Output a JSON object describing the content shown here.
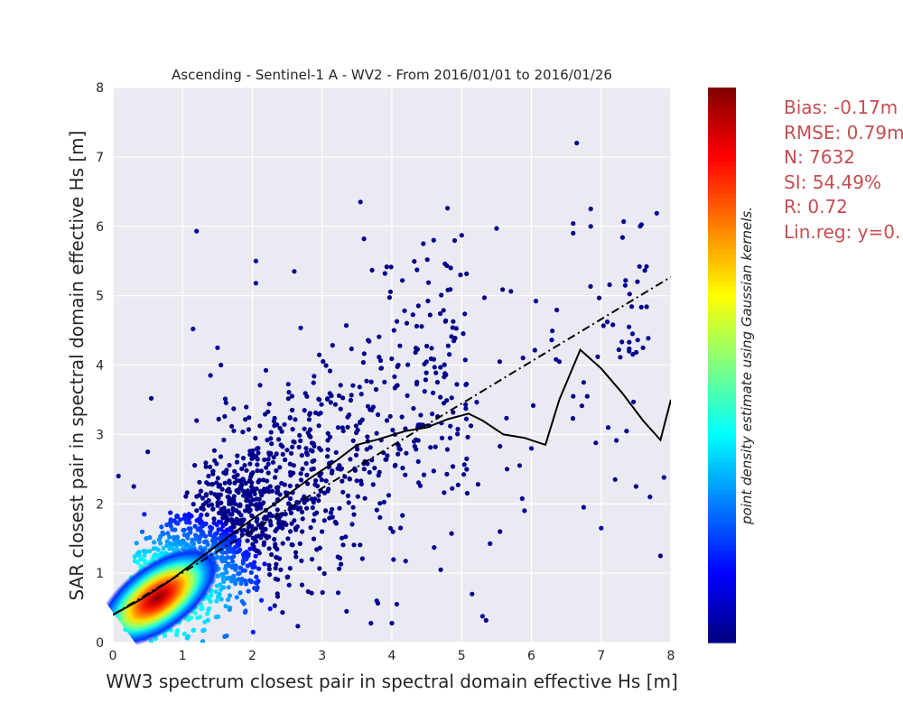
{
  "chart_data": {
    "type": "scatter",
    "title": "Ascending - Sentinel-1 A - WV2 - From 2016/01/01 to 2016/01/26",
    "xlabel": "WW3 spectrum closest pair in spectral domain effective Hs [m]",
    "ylabel": "SAR closest pair in spectral domain effective Hs [m]",
    "xlim": [
      0,
      8
    ],
    "ylim": [
      0,
      8
    ],
    "xticks": [
      "0",
      "1",
      "2",
      "3",
      "4",
      "5",
      "6",
      "7",
      "8"
    ],
    "yticks": [
      "0",
      "1",
      "2",
      "3",
      "4",
      "5",
      "6",
      "7",
      "8"
    ],
    "grid": true,
    "background": "#eaeaf2",
    "colorbar": {
      "label": "point density estimate using Gaussian kernels.",
      "colormap": "jet",
      "colors": [
        "#00007f",
        "#0000ff",
        "#007fff",
        "#00ffff",
        "#7fff7f",
        "#ffff00",
        "#ff7f00",
        "#ff0000",
        "#7f0000"
      ]
    },
    "series": [
      {
        "kind": "density-scatter",
        "n": 7632,
        "color_low": "#00008b",
        "core_center": [
          0.65,
          0.65
        ],
        "sample_points": [
          [
            6.65,
            7.2
          ],
          [
            1.2,
            5.93
          ],
          [
            3.55,
            6.35
          ],
          [
            2.05,
            5.5
          ],
          [
            2.05,
            5.18
          ],
          [
            2.6,
            5.35
          ],
          [
            6.6,
            5.9
          ],
          [
            6.85,
            6.25
          ],
          [
            6.85,
            6.0
          ],
          [
            7.35,
            5.22
          ],
          [
            7.55,
            5.42
          ],
          [
            7.65,
            5.42
          ],
          [
            5.5,
            5.97
          ],
          [
            5.0,
            5.87
          ],
          [
            4.45,
            5.75
          ],
          [
            4.6,
            5.8
          ],
          [
            4.15,
            5.22
          ],
          [
            3.9,
            5.32
          ],
          [
            3.6,
            5.82
          ],
          [
            0.55,
            3.52
          ],
          [
            0.5,
            2.75
          ],
          [
            0.45,
            1.85
          ],
          [
            0.4,
            1.1
          ],
          [
            0.08,
            2.4
          ],
          [
            0.3,
            2.25
          ],
          [
            1.2,
            3.2
          ],
          [
            1.5,
            4.25
          ],
          [
            1.55,
            4.0
          ],
          [
            1.4,
            3.85
          ],
          [
            1.15,
            4.52
          ],
          [
            7.1,
            3.1
          ],
          [
            7.2,
            2.35
          ],
          [
            7.85,
            1.25
          ],
          [
            7.5,
            2.25
          ],
          [
            7.7,
            2.1
          ],
          [
            7.9,
            2.38
          ],
          [
            5.9,
            1.9
          ],
          [
            6.0,
            2.8
          ],
          [
            6.4,
            4.05
          ],
          [
            6.6,
            3.55
          ],
          [
            6.8,
            3.55
          ],
          [
            7.0,
            1.65
          ],
          [
            6.75,
            1.95
          ],
          [
            5.35,
            0.32
          ],
          [
            5.3,
            0.38
          ],
          [
            4.0,
            0.28
          ],
          [
            3.7,
            0.28
          ],
          [
            3.35,
            0.45
          ],
          [
            5.15,
            0.7
          ],
          [
            4.7,
            1.05
          ],
          [
            5.65,
            2.5
          ],
          [
            5.55,
            1.6
          ],
          [
            7.6,
            4.25
          ],
          [
            7.45,
            4.45
          ],
          [
            7.4,
            4.55
          ],
          [
            6.95,
            4.12
          ],
          [
            6.75,
            3.75
          ]
        ]
      },
      {
        "name": "",
        "kind": "binned-mean-line",
        "color": "#000000",
        "x": [
          0.0,
          0.4,
          0.8,
          1.2,
          1.6,
          2.0,
          2.4,
          2.8,
          3.2,
          3.5,
          3.8,
          4.2,
          4.5,
          4.8,
          5.1,
          5.3,
          5.6,
          5.9,
          6.2,
          6.4,
          6.7,
          7.0,
          7.3,
          7.6,
          7.85,
          8.0
        ],
        "y": [
          0.4,
          0.62,
          0.88,
          1.18,
          1.48,
          1.78,
          2.05,
          2.35,
          2.62,
          2.85,
          2.93,
          3.05,
          3.1,
          3.22,
          3.3,
          3.2,
          3.0,
          2.95,
          2.85,
          3.5,
          4.22,
          3.95,
          3.6,
          3.2,
          2.92,
          3.5
        ]
      },
      {
        "name": "",
        "kind": "linear-regression",
        "style": "dash-dot",
        "color": "#000000",
        "x": [
          0,
          8
        ],
        "y": [
          0.4,
          5.27
        ]
      }
    ],
    "stats": {
      "bias": "Bias: -0.17m",
      "rmse": "RMSE: 0.79m",
      "n": "N: 7632",
      "si": "SI: 54.49%",
      "r": "R: 0.72",
      "linreg": "Lin.reg: y=0."
    }
  }
}
